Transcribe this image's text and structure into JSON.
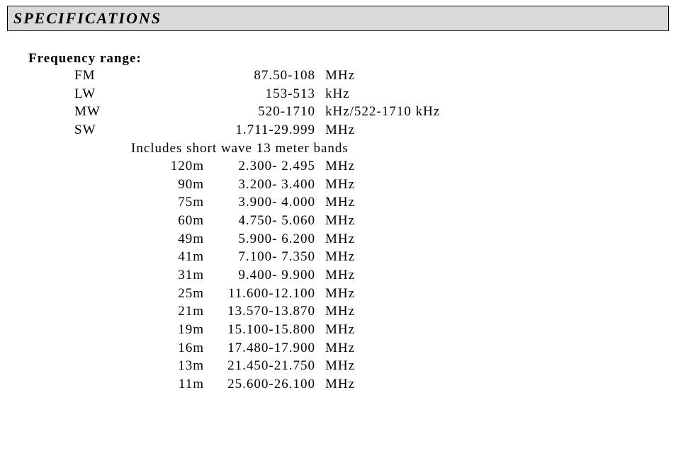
{
  "header": {
    "title": "SPECIFICATIONS"
  },
  "section_label": "Frequency range:",
  "main_bands": [
    {
      "band": "FM",
      "range": "87.50-108",
      "unit": "MHz"
    },
    {
      "band": "LW",
      "range": "153-513",
      "unit": "kHz"
    },
    {
      "band": "MW",
      "range": "520-1710",
      "unit": "kHz/522-1710 kHz"
    },
    {
      "band": "SW",
      "range": "1.711-29.999",
      "unit": "MHz"
    }
  ],
  "sw_note": "Includes short wave 13 meter bands",
  "sw_bands": [
    {
      "band": "120m",
      "range": "2.300- 2.495",
      "unit": "MHz"
    },
    {
      "band": "90m",
      "range": "3.200- 3.400",
      "unit": "MHz"
    },
    {
      "band": "75m",
      "range": "3.900- 4.000",
      "unit": "MHz"
    },
    {
      "band": "60m",
      "range": "4.750- 5.060",
      "unit": "MHz"
    },
    {
      "band": "49m",
      "range": "5.900- 6.200",
      "unit": "MHz"
    },
    {
      "band": "41m",
      "range": "7.100- 7.350",
      "unit": "MHz"
    },
    {
      "band": "31m",
      "range": "9.400- 9.900",
      "unit": "MHz"
    },
    {
      "band": "25m",
      "range": "11.600-12.100",
      "unit": "MHz"
    },
    {
      "band": "21m",
      "range": "13.570-13.870",
      "unit": "MHz"
    },
    {
      "band": "19m",
      "range": "15.100-15.800",
      "unit": "MHz"
    },
    {
      "band": "16m",
      "range": "17.480-17.900",
      "unit": "MHz"
    },
    {
      "band": "13m",
      "range": "21.450-21.750",
      "unit": "MHz"
    },
    {
      "band": "11m",
      "range": "25.600-26.100",
      "unit": "MHz"
    }
  ]
}
